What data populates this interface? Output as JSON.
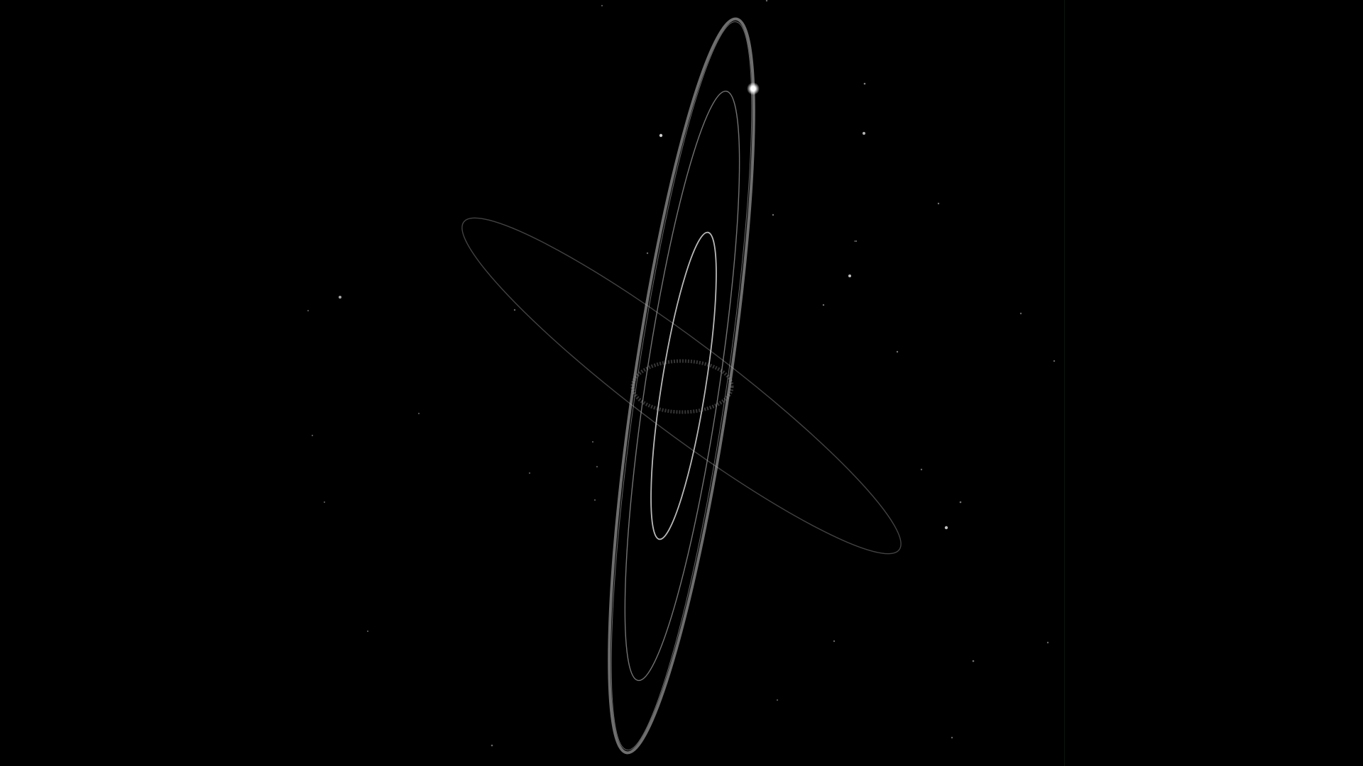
{
  "scene": {
    "background_color": "#000000",
    "orbit_color": "#bfbfbf",
    "star_color": "#ffffff",
    "planet_color": "#ffffff",
    "divider_color": "#07160b"
  }
}
